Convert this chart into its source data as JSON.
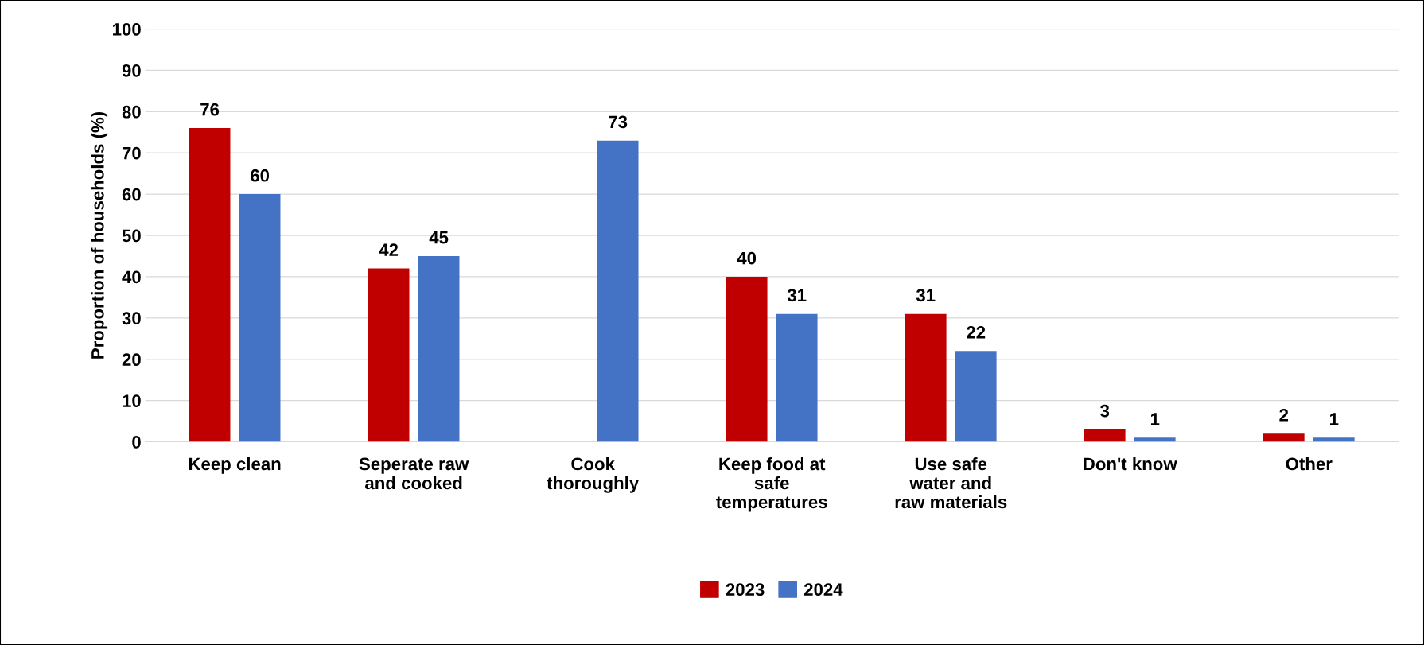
{
  "chart_data": {
    "type": "bar",
    "ylabel": "Proportion of households (%)",
    "categories": [
      "Keep clean",
      "Seperate raw\nand cooked",
      "Cook\nthoroughly",
      "Keep food at\nsafe\ntemperatures",
      "Use safe\nwater and\nraw materials",
      "Don't know",
      "Other"
    ],
    "series": [
      {
        "name": "2023",
        "color": "#c00000",
        "values": [
          76,
          42,
          null,
          40,
          31,
          3,
          2
        ]
      },
      {
        "name": "2024",
        "color": "#4472c4",
        "values": [
          60,
          45,
          73,
          31,
          22,
          1,
          1
        ]
      }
    ],
    "ylim": [
      0,
      100
    ],
    "yticks": [
      0,
      10,
      20,
      30,
      40,
      50,
      60,
      70,
      80,
      90,
      100
    ],
    "grid": "y",
    "legend": "bottom",
    "data_labels": true
  }
}
